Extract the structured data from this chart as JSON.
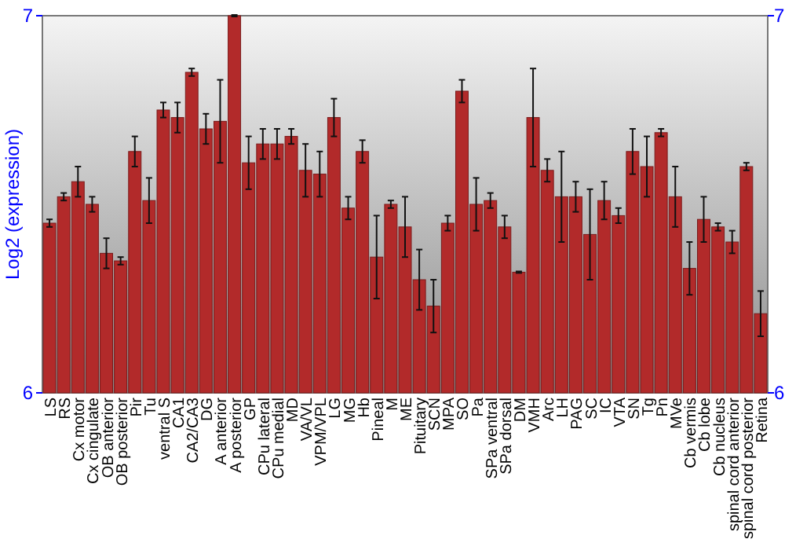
{
  "chart_data": {
    "type": "bar",
    "ylabel": "Log2 (expression)",
    "categories": [
      "LS",
      "RS",
      "Cx motor",
      "Cx cingulate",
      "OB anterior",
      "OB posterior",
      "Pir",
      "Tu",
      "ventral S",
      "CA1",
      "CA2/CA3",
      "DG",
      "A anterior",
      "A posterior",
      "GP",
      "CPu lateral",
      "CPu medial",
      "MD",
      "VA/VL",
      "VPM/VPL",
      "LG",
      "MG",
      "Hb",
      "Pineal",
      "M",
      "ME",
      "Pituitary",
      "SCN",
      "MPA",
      "SO",
      "Pa",
      "SPa ventral",
      "SPa dorsal",
      "DM",
      "VMH",
      "Arc",
      "LH",
      "PAG",
      "SC",
      "IC",
      "VTA",
      "SN",
      "Tg",
      "Pn",
      "MVe",
      "Cb vermis",
      "Cb lobe",
      "Cb nucleus",
      "spinal cord anterior",
      "spinal cord posterior",
      "Retina"
    ],
    "values": [
      6.45,
      6.52,
      6.56,
      6.5,
      6.37,
      6.35,
      6.64,
      6.51,
      6.75,
      6.73,
      6.85,
      6.7,
      6.72,
      7.0,
      6.61,
      6.66,
      6.66,
      6.68,
      6.59,
      6.58,
      6.73,
      6.49,
      6.64,
      6.36,
      6.5,
      6.44,
      6.3,
      6.23,
      6.45,
      6.8,
      6.5,
      6.51,
      6.44,
      6.32,
      6.73,
      6.59,
      6.52,
      6.52,
      6.42,
      6.51,
      6.47,
      6.64,
      6.6,
      6.69,
      6.52,
      6.33,
      6.46,
      6.44,
      6.4,
      6.6,
      6.21
    ],
    "errors": [
      0.01,
      0.01,
      0.04,
      0.02,
      0.04,
      0.01,
      0.04,
      0.06,
      0.02,
      0.04,
      0.01,
      0.04,
      0.11,
      0.002,
      0.07,
      0.04,
      0.04,
      0.02,
      0.07,
      0.06,
      0.05,
      0.03,
      0.03,
      0.11,
      0.01,
      0.08,
      0.08,
      0.07,
      0.02,
      0.03,
      0.07,
      0.02,
      0.03,
      0.002,
      0.13,
      0.03,
      0.12,
      0.04,
      0.12,
      0.05,
      0.02,
      0.06,
      0.08,
      0.01,
      0.08,
      0.07,
      0.06,
      0.01,
      0.03,
      0.01,
      0.06
    ],
    "color": "#b22a2a",
    "ylim": [
      6,
      7
    ],
    "yticks": [
      6,
      7
    ],
    "y2lim": [
      6,
      7
    ],
    "y2ticks": [
      6,
      7
    ],
    "grid": false
  }
}
